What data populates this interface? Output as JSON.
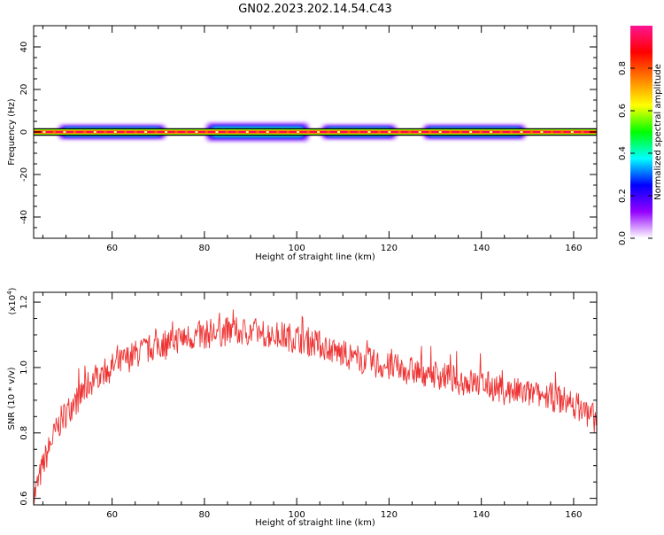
{
  "title": "GN02.2023.202.14.54.C43",
  "chart_data": [
    {
      "type": "heatmap",
      "xlabel": "Height of straight line (km)",
      "ylabel": "Frequency (Hz)",
      "xlim": [
        43,
        165
      ],
      "ylim": [
        -50,
        50
      ],
      "xticks": [
        "60",
        "80",
        "100",
        "120",
        "140",
        "160"
      ],
      "yticks": [
        "-40",
        "-20",
        "0",
        "20",
        "40"
      ],
      "centerline_hz": 0,
      "band_hz": 1.5,
      "spread_segments": [
        {
          "x": [
            48,
            72
          ],
          "halfwidth_hz": 4
        },
        {
          "x": [
            80,
            103
          ],
          "halfwidth_hz": 5
        },
        {
          "x": [
            105,
            122
          ],
          "halfwidth_hz": 4
        },
        {
          "x": [
            127,
            150
          ],
          "halfwidth_hz": 4
        }
      ],
      "colorbar": {
        "label": "Normalized spectral amplitude",
        "range": [
          0,
          1
        ],
        "ticks": [
          "0.0",
          "0.2",
          "0.4",
          "0.6",
          "0.8"
        ],
        "colors": [
          "#ffffff",
          "#9400ff",
          "#0000ff",
          "#00ffff",
          "#00ff00",
          "#ffff00",
          "#ff8000",
          "#ff0000",
          "#ff1493"
        ]
      }
    },
    {
      "type": "line",
      "xlabel": "Height of straight line (km)",
      "ylabel": "SNR (10 * v/v)",
      "multiplier_label": "(x10",
      "multiplier_exp": "4",
      "multiplier_close": ")",
      "xlim": [
        43,
        165
      ],
      "ylim": [
        0.58,
        1.23
      ],
      "xticks": [
        "60",
        "80",
        "100",
        "120",
        "140",
        "160"
      ],
      "yticks": [
        "0.6",
        "0.8",
        "1.0",
        "1.2"
      ],
      "color": "#ee3333",
      "series": [
        {
          "x": [
            43,
            45,
            47,
            49,
            51,
            53,
            55,
            57,
            60,
            65,
            70,
            75,
            80,
            85,
            90,
            95,
            100,
            105,
            110,
            115,
            120,
            125,
            130,
            135,
            140,
            145,
            150,
            155,
            160,
            163,
            165
          ],
          "values": [
            0.6,
            0.7,
            0.78,
            0.84,
            0.88,
            0.91,
            0.95,
            0.98,
            1.0,
            1.04,
            1.07,
            1.09,
            1.1,
            1.11,
            1.11,
            1.1,
            1.09,
            1.07,
            1.04,
            1.02,
            1.0,
            0.99,
            0.98,
            0.96,
            0.95,
            0.93,
            0.92,
            0.91,
            0.89,
            0.86,
            0.84
          ]
        }
      ]
    }
  ]
}
